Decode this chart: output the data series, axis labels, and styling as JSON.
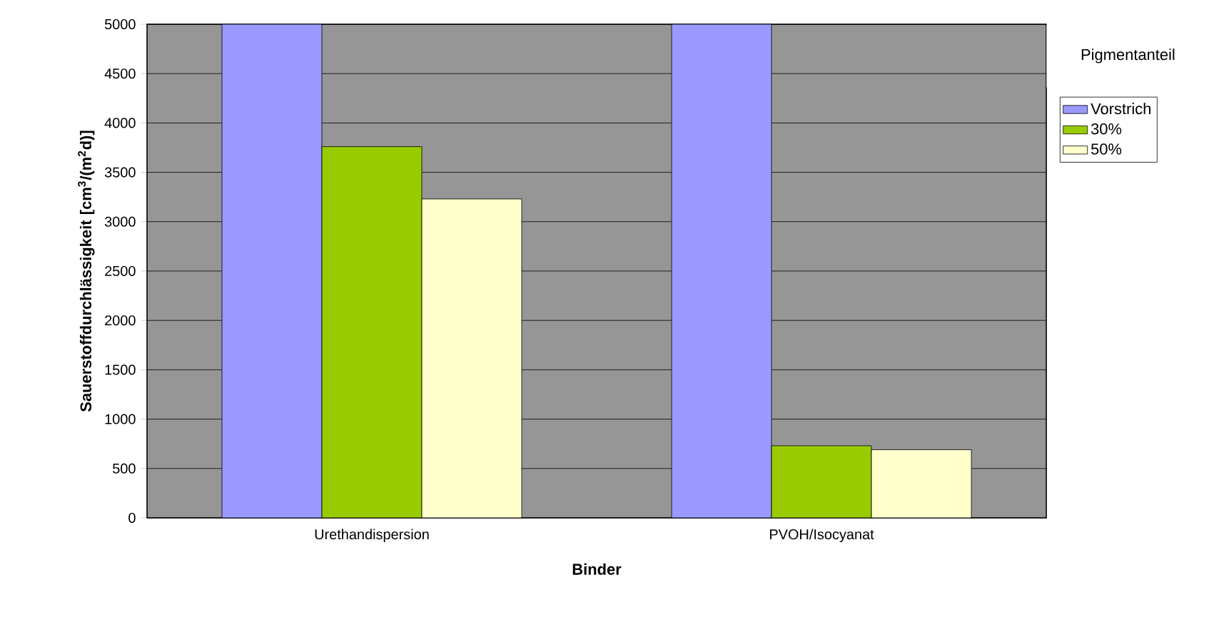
{
  "chart_data": {
    "type": "bar",
    "xlabel": "Binder",
    "ylabel": "Sauerstoffdurchlässigkeit [cm$^{3}$/(m$^{2}$d)]",
    "legend_title": "Pigmentanteil",
    "categories": [
      "Urethandispersion",
      "PVOH/Isocyanat"
    ],
    "series": [
      {
        "name": "Vorstrich",
        "color": "#9999ff",
        "values": [
          5000,
          5000
        ]
      },
      {
        "name": "30%",
        "color": "#99cc00",
        "values": [
          3760,
          730
        ]
      },
      {
        "name": "50%",
        "color": "#ffffcc",
        "values": [
          3230,
          690
        ]
      }
    ],
    "ylim": [
      0,
      5000
    ],
    "yticks": [
      0,
      500,
      1000,
      1500,
      2000,
      2500,
      3000,
      3500,
      4000,
      4500,
      5000
    ],
    "grid": "y",
    "legend": "right"
  }
}
